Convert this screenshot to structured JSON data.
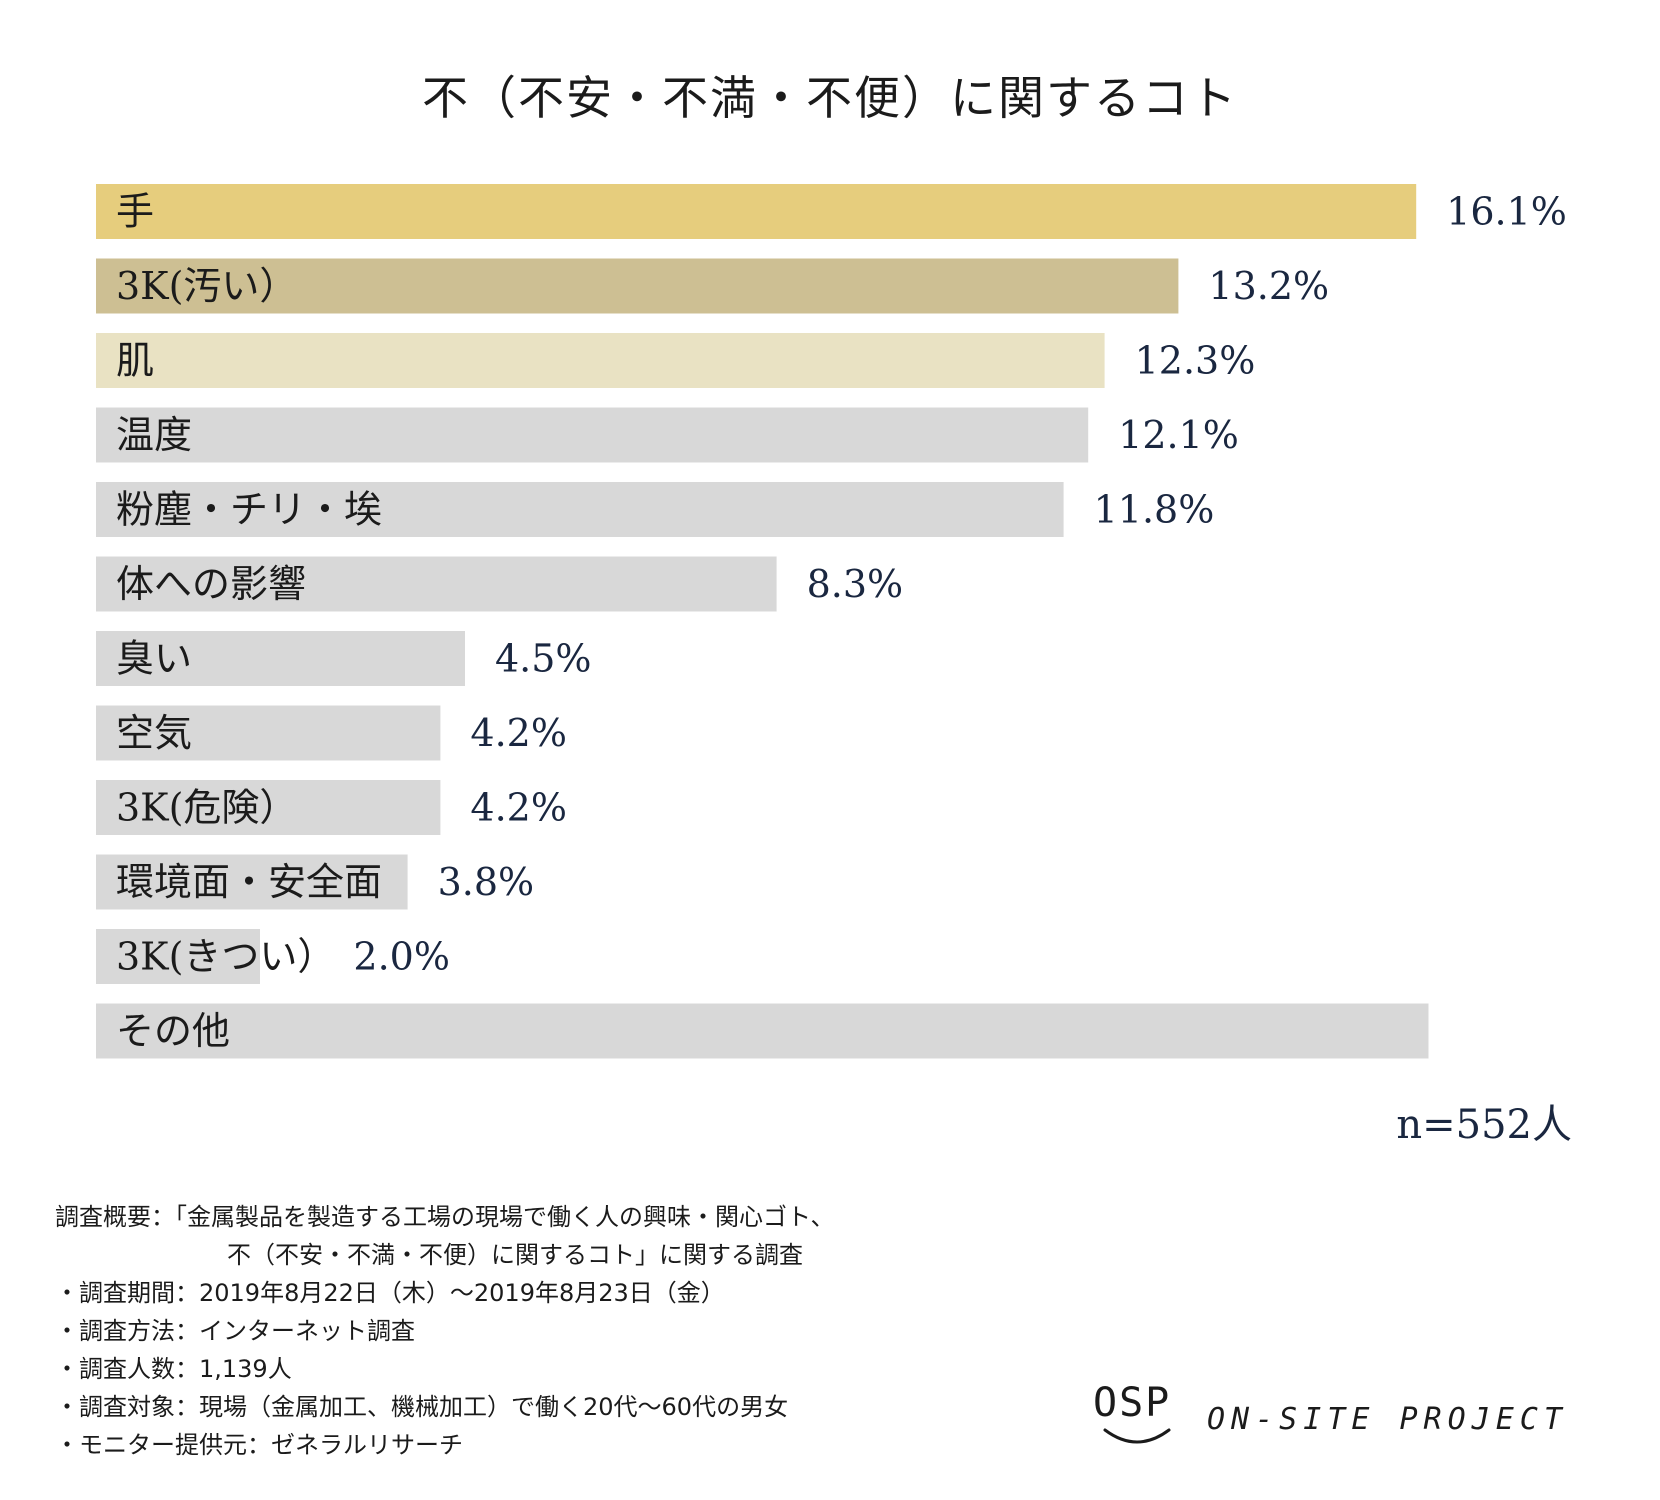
{
  "chart_data": {
    "type": "bar",
    "orientation": "horizontal",
    "title": "不（不安・不満・不便）に関するコト",
    "categories": [
      "手",
      "3K(汚い）",
      "肌",
      "温度",
      "粉塵・チリ・埃",
      "体への影響",
      "臭い",
      "空気",
      "3K(危険）",
      "環境面・安全面",
      "3K(きつい）",
      "その他"
    ],
    "values": [
      16.1,
      13.2,
      12.3,
      12.1,
      11.8,
      8.3,
      4.5,
      4.2,
      4.2,
      3.8,
      2.0,
      null
    ],
    "value_labels": [
      "16.1%",
      "13.2%",
      "12.3%",
      "12.1%",
      "11.8%",
      "8.3%",
      "4.5%",
      "4.2%",
      "4.2%",
      "3.8%",
      "2.0%",
      ""
    ],
    "bar_colors": [
      "#e6cd7d",
      "#cdbf93",
      "#e9e2c3",
      "#d8d8d8",
      "#d8d8d8",
      "#d8d8d8",
      "#d8d8d8",
      "#d8d8d8",
      "#d8d8d8",
      "#d8d8d8",
      "#d8d8d8",
      "#d8d8d8"
    ],
    "other_bar_value": 16.25,
    "xlim": [
      0,
      17
    ],
    "grid": false,
    "legend": "none",
    "sample_size": "n=552人"
  },
  "notes": {
    "lines": [
      "調査概要：「金属製品を製造する工場の現場で働く人の興味・関心ゴト、",
      "不（不安・不満・不便）に関するコト」に関する調査",
      "・調査期間：2019年8月22日（木）〜2019年8月23日（金）",
      "・調査方法：インターネット調査",
      "・調査人数：1,139人",
      "・調査対象：現場（金属加工、機械加工）で働く20代〜60代の男女",
      "・モニター提供元：ゼネラルリサーチ"
    ]
  },
  "brand": {
    "logo": "OSP",
    "name": "ON-SITE PROJECT"
  }
}
